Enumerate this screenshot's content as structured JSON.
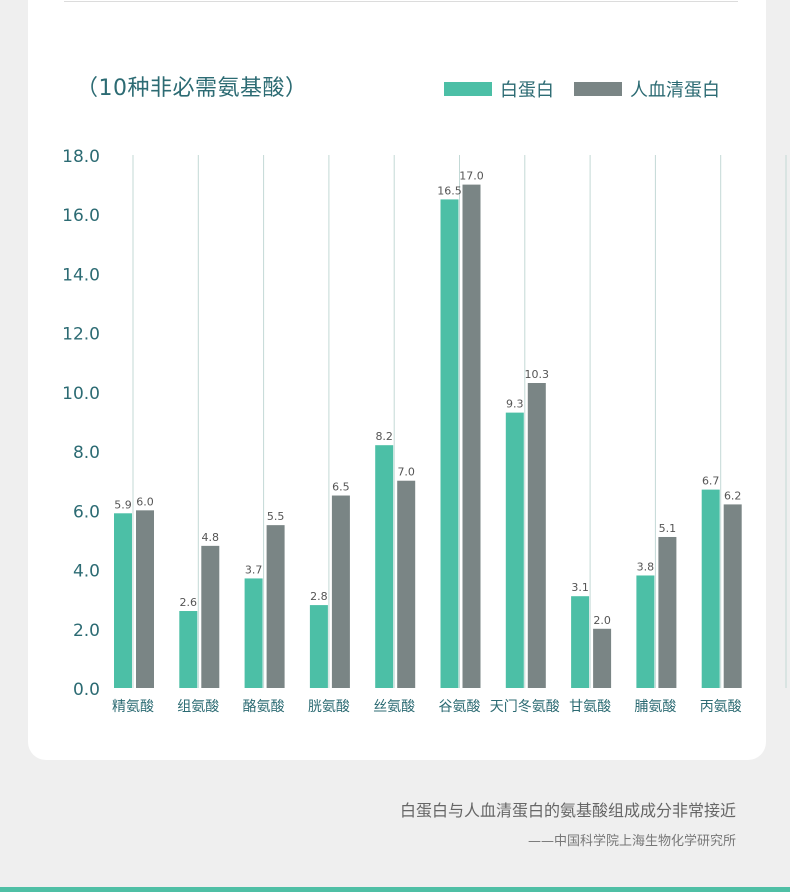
{
  "colors": {
    "series_a": "#4cbfa6",
    "series_b": "#7a8585",
    "axis_text": "#2c6b73",
    "grid": "#c3d9d6",
    "value_label": "#555555"
  },
  "header": {
    "title": "（10种非必需氨基酸）"
  },
  "footer": {
    "quote": "白蛋白与人血清蛋白的氨基酸组成成分非常接近",
    "source": "——中国科学院上海生物化学研究所"
  },
  "chart_data": {
    "type": "bar",
    "title": "（10种非必需氨基酸）",
    "xlabel": "",
    "ylabel": "",
    "ylim": [
      0,
      18
    ],
    "yticks": [
      "0.0",
      "2.0",
      "4.0",
      "6.0",
      "8.0",
      "10.0",
      "12.0",
      "14.0",
      "16.0",
      "18.0"
    ],
    "grid": "vertical",
    "legend_position": "top-right",
    "categories": [
      "精氨酸",
      "组氨酸",
      "酪氨酸",
      "胱氨酸",
      "丝氨酸",
      "谷氨酸",
      "天门冬氨酸",
      "甘氨酸",
      "脯氨酸",
      "丙氨酸"
    ],
    "series": [
      {
        "name": "白蛋白",
        "values": [
          5.9,
          2.6,
          3.7,
          2.8,
          8.2,
          16.5,
          9.3,
          3.1,
          3.8,
          6.7
        ],
        "labels": [
          "5.9",
          "2.6",
          "3.7",
          "2.8",
          "8.2",
          "16.5",
          "9.3",
          "3.1",
          "3.8",
          "6.7"
        ]
      },
      {
        "name": "人血清蛋白",
        "values": [
          6.0,
          4.8,
          5.5,
          6.5,
          7.0,
          17.0,
          10.3,
          2.0,
          5.1,
          6.2
        ],
        "labels": [
          "6.0",
          "4.8",
          "5.5",
          "6.5",
          "7.0",
          "17.0",
          "10.3",
          "2.0",
          "5.1",
          "6.2"
        ]
      }
    ]
  }
}
